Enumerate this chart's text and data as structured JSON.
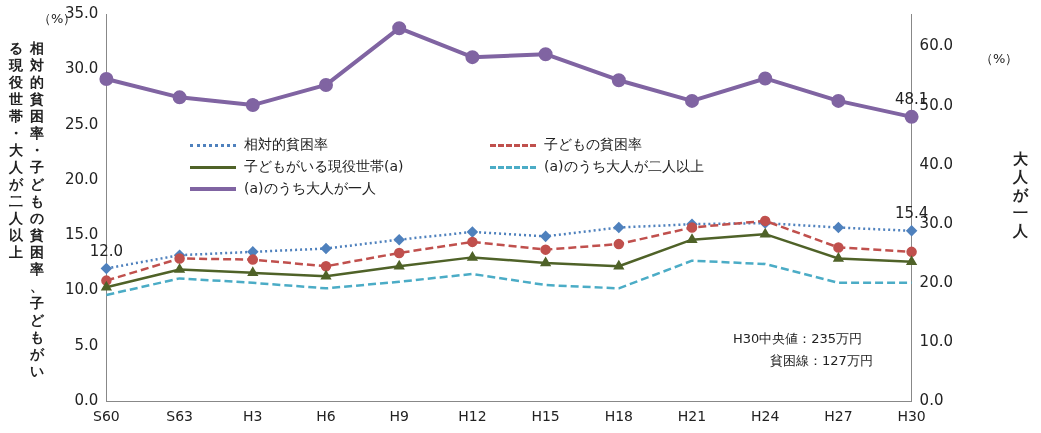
{
  "chart_data": {
    "type": "line",
    "ylabel": "相対的貧困率・子どもの貧困率、子どもがいる現役世帯・大人が二人以上",
    "y2label": "大人が一人",
    "categories": [
      "S60",
      "S63",
      "H3",
      "H6",
      "H9",
      "H12",
      "H15",
      "H18",
      "H21",
      "H24",
      "H27",
      "H30"
    ],
    "series": [
      {
        "name": "相対的貧困率",
        "color": "#4f81bd",
        "marker": "diamond",
        "line_style": "dotted",
        "values": [
          12.0,
          13.2,
          13.5,
          13.8,
          14.6,
          15.3,
          14.9,
          15.7,
          16.0,
          16.1,
          15.7,
          15.4
        ],
        "value_labels": [
          "12.0",
          null,
          null,
          null,
          null,
          null,
          null,
          null,
          null,
          null,
          null,
          "15.4"
        ]
      },
      {
        "name": "子どもの貧困率",
        "color": "#c0504d",
        "marker": "circle",
        "line_style": "dashed",
        "values": [
          10.9,
          12.9,
          12.8,
          12.2,
          13.4,
          14.4,
          13.7,
          14.2,
          15.7,
          16.3,
          13.9,
          13.5
        ]
      },
      {
        "name": "子どもがいる現役世帯(a)",
        "color": "#4f6228",
        "marker": "triangle",
        "line_style": "solid",
        "values": [
          10.3,
          11.9,
          11.6,
          11.3,
          12.2,
          13.0,
          12.5,
          12.2,
          14.6,
          15.1,
          12.9,
          12.6
        ]
      },
      {
        "name": "(a)のうち大人が二人以上",
        "color": "#4bacc6",
        "marker": "none",
        "line_style": "dashed",
        "values": [
          9.6,
          11.1,
          10.7,
          10.2,
          10.8,
          11.5,
          10.5,
          10.2,
          12.7,
          12.4,
          10.7,
          10.7
        ]
      },
      {
        "name": "(a)のうち大人が一人",
        "color": "#8064a2",
        "marker": "circle",
        "line_style": "solid",
        "axis": "y2",
        "values": [
          54.5,
          51.4,
          50.1,
          53.5,
          63.1,
          58.2,
          58.7,
          54.3,
          50.8,
          54.6,
          50.8,
          48.1
        ],
        "value_labels": [
          null,
          null,
          null,
          null,
          null,
          null,
          null,
          null,
          null,
          null,
          null,
          "48.1"
        ]
      }
    ],
    "ylim": [
      0,
      35
    ],
    "yticks": [
      {
        "value": 0,
        "label": "0.0"
      },
      {
        "value": 5,
        "label": "5.0"
      },
      {
        "value": 10,
        "label": "10.0"
      },
      {
        "value": 15,
        "label": "15.0"
      },
      {
        "value": 20,
        "label": "20.0"
      },
      {
        "value": 25,
        "label": "25.0"
      },
      {
        "value": 30,
        "label": "30.0"
      },
      {
        "value": 35,
        "label": "35.0"
      }
    ],
    "y2lim": [
      0,
      65.5
    ],
    "y2ticks": [
      {
        "value": 0,
        "label": "0.0"
      },
      {
        "value": 10,
        "label": "10.0"
      },
      {
        "value": 20,
        "label": "20.0"
      },
      {
        "value": 30,
        "label": "30.0"
      },
      {
        "value": 40,
        "label": "40.0"
      },
      {
        "value": 50,
        "label": "50.0"
      },
      {
        "value": 60,
        "label": "60.0"
      }
    ],
    "grid": false,
    "legend": "top left",
    "annotations": [
      "（%）",
      "（%）",
      "H30中央値：235万円",
      "貧困線：127万円"
    ]
  }
}
